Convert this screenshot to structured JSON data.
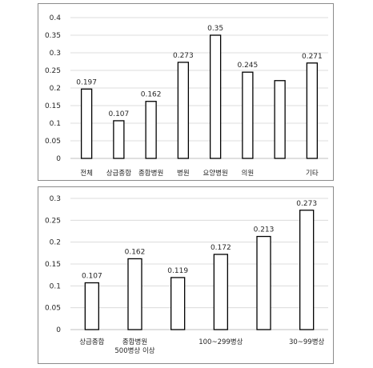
{
  "chart_data": [
    {
      "type": "bar",
      "categories": [
        "전체",
        "상급종합",
        "종합병원",
        "병원",
        "요양병원",
        "의원",
        "",
        "기타"
      ],
      "values": [
        0.197,
        0.107,
        0.162,
        0.273,
        0.35,
        0.245,
        0.221,
        0.271
      ],
      "value_labels": [
        "0.197",
        "0.107",
        "0.162",
        "0.273",
        "0.35",
        "0.245",
        "",
        "0.271"
      ],
      "ylim": [
        0,
        0.4
      ],
      "yticks": [
        "0",
        "0.05",
        "0.1",
        "0.15",
        "0.2",
        "0.25",
        "0.3",
        "0.35",
        "0.4"
      ],
      "grid": true,
      "bar_color": "#ffffff",
      "edge_color": "#000000"
    },
    {
      "type": "bar",
      "categories": [
        "상급종합",
        "종합병원\n500병상 이상",
        "",
        "100~299병상",
        "",
        "30~99병상"
      ],
      "values": [
        0.107,
        0.162,
        0.119,
        0.172,
        0.213,
        0.273
      ],
      "value_labels": [
        "0.107",
        "0.162",
        "0.119",
        "0.172",
        "0.213",
        "0.273"
      ],
      "ylim": [
        0,
        0.3
      ],
      "yticks": [
        "0",
        "0.05",
        "0.1",
        "0.15",
        "0.2",
        "0.25",
        "0.3"
      ],
      "grid": true,
      "bar_color": "#ffffff",
      "edge_color": "#000000"
    }
  ]
}
